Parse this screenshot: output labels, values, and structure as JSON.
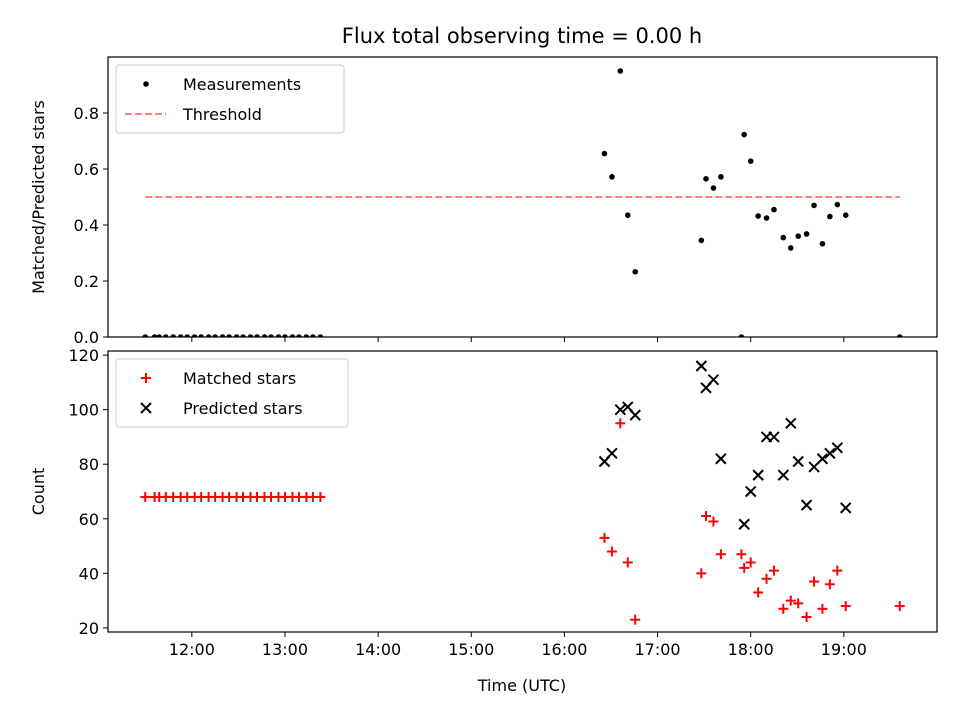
{
  "figure": {
    "title": "Flux total observing time = 0.00 h",
    "xlabel": "Time (UTC)"
  },
  "chart_data": [
    {
      "type": "scatter",
      "ylabel": "Matched/Predicted stars",
      "xlim": [
        11.1,
        20.0
      ],
      "ylim": [
        0,
        1.0
      ],
      "yticks": [
        0.0,
        0.2,
        0.4,
        0.6,
        0.8
      ],
      "legend_position": "top-left",
      "series": [
        {
          "name": "Measurements",
          "marker": "dot",
          "color": "#000000",
          "points": [
            [
              11.5,
              0
            ],
            [
              11.6,
              0
            ],
            [
              11.65,
              0
            ],
            [
              11.72,
              0
            ],
            [
              11.8,
              0
            ],
            [
              11.88,
              0
            ],
            [
              11.95,
              0
            ],
            [
              12.03,
              0
            ],
            [
              12.1,
              0
            ],
            [
              12.18,
              0
            ],
            [
              12.25,
              0
            ],
            [
              12.33,
              0
            ],
            [
              12.4,
              0
            ],
            [
              12.48,
              0
            ],
            [
              12.55,
              0
            ],
            [
              12.63,
              0
            ],
            [
              12.7,
              0
            ],
            [
              12.78,
              0
            ],
            [
              12.85,
              0
            ],
            [
              12.93,
              0
            ],
            [
              13.0,
              0
            ],
            [
              13.08,
              0
            ],
            [
              13.15,
              0
            ],
            [
              13.23,
              0
            ],
            [
              13.3,
              0
            ],
            [
              13.38,
              0
            ],
            [
              16.43,
              0.655
            ],
            [
              16.51,
              0.572
            ],
            [
              16.6,
              0.95
            ],
            [
              16.68,
              0.435
            ],
            [
              16.76,
              0.233
            ],
            [
              17.47,
              0.345
            ],
            [
              17.52,
              0.565
            ],
            [
              17.6,
              0.532
            ],
            [
              17.68,
              0.572
            ],
            [
              17.9,
              0.0
            ],
            [
              17.93,
              0.723
            ],
            [
              18.0,
              0.628
            ],
            [
              18.08,
              0.432
            ],
            [
              18.17,
              0.425
            ],
            [
              18.25,
              0.455
            ],
            [
              18.35,
              0.355
            ],
            [
              18.43,
              0.318
            ],
            [
              18.51,
              0.36
            ],
            [
              18.6,
              0.368
            ],
            [
              18.68,
              0.47
            ],
            [
              18.77,
              0.333
            ],
            [
              18.85,
              0.43
            ],
            [
              18.93,
              0.473
            ],
            [
              19.02,
              0.435
            ],
            [
              19.6,
              0.0
            ]
          ]
        },
        {
          "name": "Threshold",
          "marker": "dashed-line",
          "color": "#ff7f7f",
          "points": [
            [
              11.5,
              0.5
            ],
            [
              19.6,
              0.5
            ]
          ]
        }
      ]
    },
    {
      "type": "scatter",
      "ylabel": "Count",
      "xlim": [
        11.1,
        20.0
      ],
      "ylim": [
        18.5,
        121.5
      ],
      "yticks": [
        20,
        40,
        60,
        80,
        100,
        120
      ],
      "xticks": [
        {
          "value": 12,
          "label": "12:00"
        },
        {
          "value": 13,
          "label": "13:00"
        },
        {
          "value": 14,
          "label": "14:00"
        },
        {
          "value": 15,
          "label": "15:00"
        },
        {
          "value": 16,
          "label": "16:00"
        },
        {
          "value": 17,
          "label": "17:00"
        },
        {
          "value": 18,
          "label": "18:00"
        },
        {
          "value": 19,
          "label": "19:00"
        }
      ],
      "legend_position": "top-left",
      "series": [
        {
          "name": "Matched stars",
          "marker": "plus",
          "color": "#ff0000",
          "points": [
            [
              11.5,
              68
            ],
            [
              11.6,
              68
            ],
            [
              11.65,
              68
            ],
            [
              11.72,
              68
            ],
            [
              11.8,
              68
            ],
            [
              11.88,
              68
            ],
            [
              11.95,
              68
            ],
            [
              12.03,
              68
            ],
            [
              12.1,
              68
            ],
            [
              12.18,
              68
            ],
            [
              12.25,
              68
            ],
            [
              12.33,
              68
            ],
            [
              12.4,
              68
            ],
            [
              12.48,
              68
            ],
            [
              12.55,
              68
            ],
            [
              12.63,
              68
            ],
            [
              12.7,
              68
            ],
            [
              12.78,
              68
            ],
            [
              12.85,
              68
            ],
            [
              12.93,
              68
            ],
            [
              13.0,
              68
            ],
            [
              13.08,
              68
            ],
            [
              13.15,
              68
            ],
            [
              13.23,
              68
            ],
            [
              13.3,
              68
            ],
            [
              13.38,
              68
            ],
            [
              16.43,
              53
            ],
            [
              16.51,
              48
            ],
            [
              16.6,
              95
            ],
            [
              16.68,
              44
            ],
            [
              16.76,
              23
            ],
            [
              17.47,
              40
            ],
            [
              17.52,
              61
            ],
            [
              17.6,
              59
            ],
            [
              17.68,
              47
            ],
            [
              17.9,
              47
            ],
            [
              17.93,
              42
            ],
            [
              18.0,
              44
            ],
            [
              18.08,
              33
            ],
            [
              18.17,
              38
            ],
            [
              18.25,
              41
            ],
            [
              18.35,
              27
            ],
            [
              18.43,
              30
            ],
            [
              18.51,
              29
            ],
            [
              18.6,
              24
            ],
            [
              18.68,
              37
            ],
            [
              18.77,
              27
            ],
            [
              18.85,
              36
            ],
            [
              18.93,
              41
            ],
            [
              19.02,
              28
            ],
            [
              19.6,
              28
            ]
          ]
        },
        {
          "name": "Predicted stars",
          "marker": "x",
          "color": "#000000",
          "points": [
            [
              16.43,
              81
            ],
            [
              16.51,
              84
            ],
            [
              16.6,
              100
            ],
            [
              16.68,
              101
            ],
            [
              16.76,
              98
            ],
            [
              17.47,
              116
            ],
            [
              17.52,
              108
            ],
            [
              17.6,
              111
            ],
            [
              17.68,
              82
            ],
            [
              17.93,
              58
            ],
            [
              18.0,
              70
            ],
            [
              18.08,
              76
            ],
            [
              18.17,
              90
            ],
            [
              18.25,
              90
            ],
            [
              18.35,
              76
            ],
            [
              18.43,
              95
            ],
            [
              18.51,
              81
            ],
            [
              18.6,
              65
            ],
            [
              18.68,
              79
            ],
            [
              18.77,
              82
            ],
            [
              18.85,
              84
            ],
            [
              18.93,
              86
            ],
            [
              19.02,
              64
            ]
          ]
        }
      ]
    }
  ]
}
